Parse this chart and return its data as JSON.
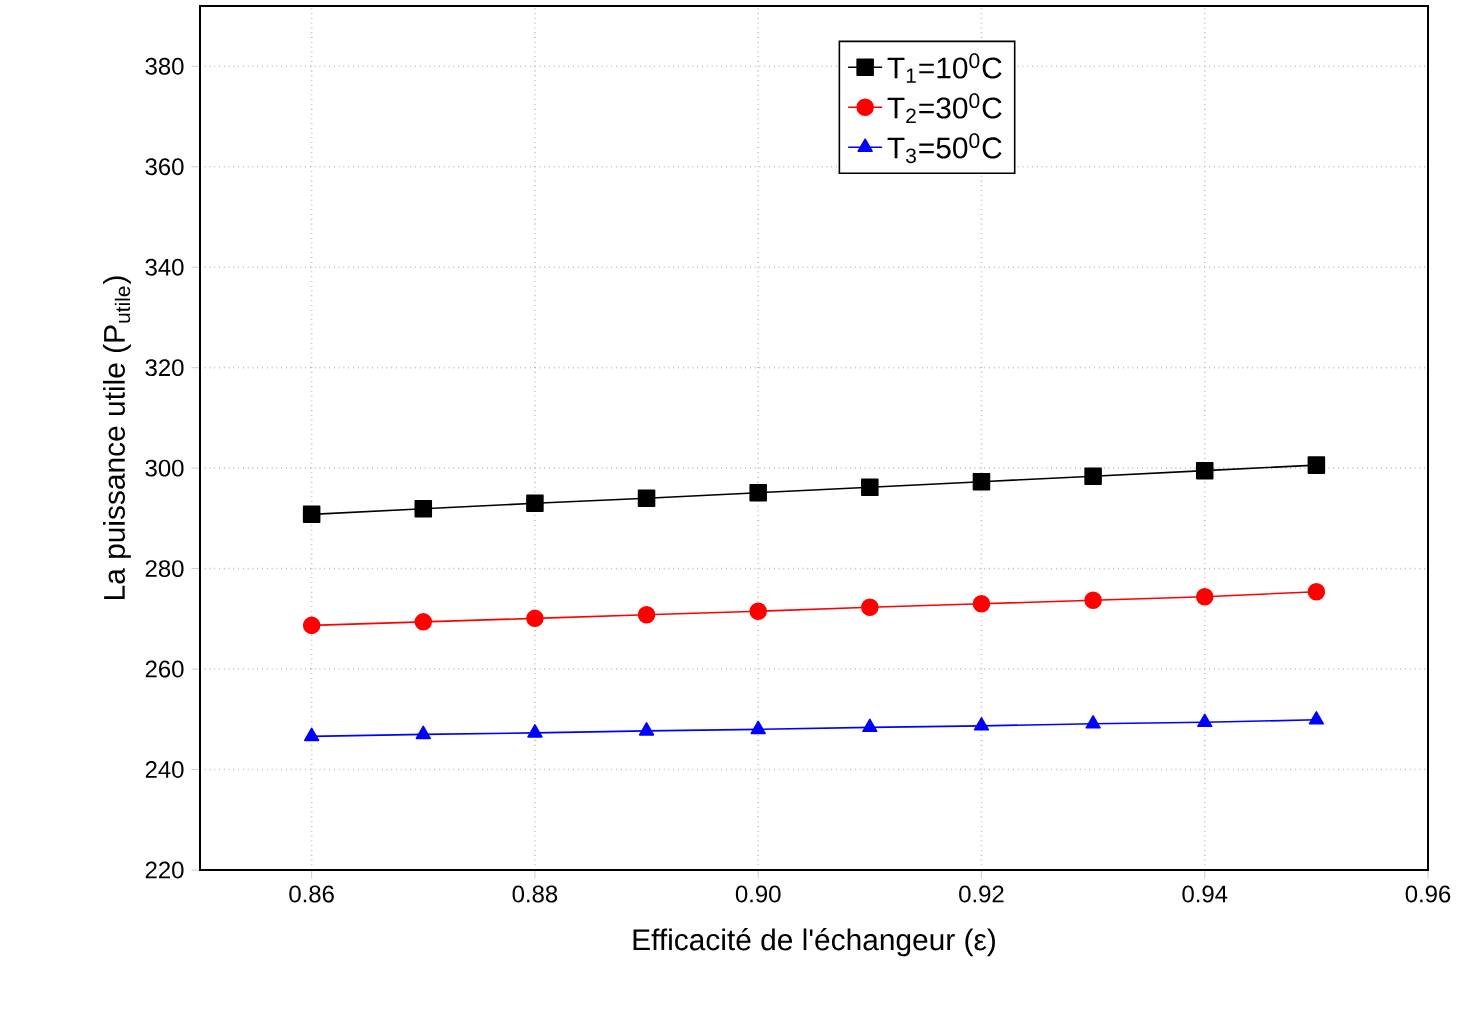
{
  "chart_data": {
    "type": "line",
    "xlabel": "Efficacité de l'échangeur (ε)",
    "ylabel": "La puissance utile (P$_{utile}$)",
    "x": [
      0.86,
      0.87,
      0.88,
      0.89,
      0.9,
      0.91,
      0.92,
      0.93,
      0.94,
      0.95
    ],
    "series": [
      {
        "name": "T$_{1}$=10$^{0}$C",
        "color": "#000000",
        "marker": "square",
        "values": [
          290.8,
          291.9,
          293.0,
          294.0,
          295.1,
          296.2,
          297.3,
          298.4,
          299.5,
          300.6
        ]
      },
      {
        "name": "T$_{2}$=30$^{0}$C",
        "color": "#ff0000",
        "marker": "circle",
        "values": [
          268.7,
          269.4,
          270.1,
          270.8,
          271.5,
          272.3,
          273.0,
          273.7,
          274.4,
          275.4
        ]
      },
      {
        "name": "T$_{3}$=50$^{0}$C",
        "color": "#0000ff",
        "marker": "triangle",
        "values": [
          246.6,
          247.0,
          247.3,
          247.7,
          248.0,
          248.4,
          248.7,
          249.1,
          249.4,
          249.9
        ]
      }
    ],
    "xlim": [
      0.85,
      0.96
    ],
    "ylim": [
      220,
      392
    ],
    "xticks": [
      {
        "value": 0.86,
        "label": "0.86"
      },
      {
        "value": 0.88,
        "label": "0.88"
      },
      {
        "value": 0.9,
        "label": "0.90"
      },
      {
        "value": 0.92,
        "label": "0.92"
      },
      {
        "value": 0.94,
        "label": "0.94"
      },
      {
        "value": 0.96,
        "label": "0.96"
      }
    ],
    "yticks": [
      220,
      240,
      260,
      280,
      300,
      320,
      340,
      360,
      380
    ],
    "grid": true,
    "legend": "top right",
    "line_style": "solid"
  }
}
